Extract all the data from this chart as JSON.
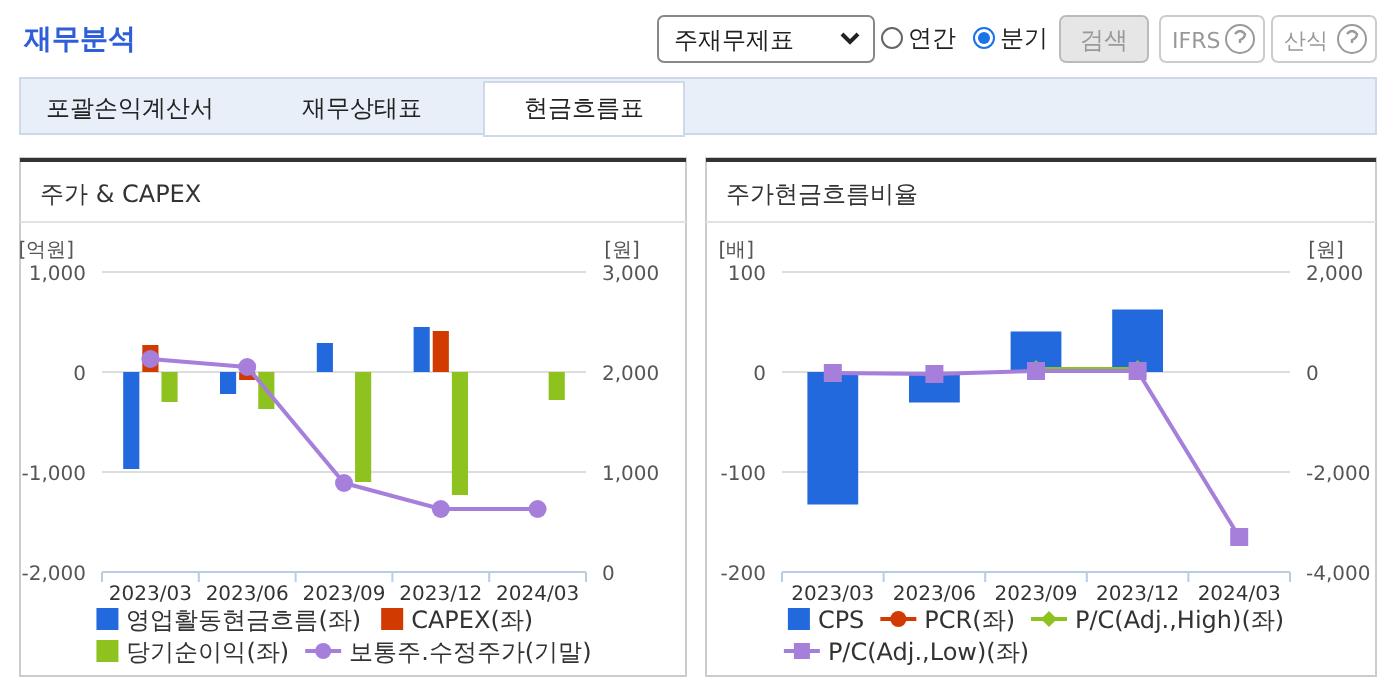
{
  "chart_data": [
    {
      "type": "other",
      "title": "재무분석",
      "annotations": [
        "주재무제표",
        "연간",
        "분기",
        "검색",
        "IFRS",
        "산식",
        "포괄손익계산서",
        "재무상태표",
        "현금흐름표"
      ]
    },
    {
      "type": "bar",
      "title": "주가 & CAPEX",
      "ylabel": "[억원]",
      "y2label": "[원]",
      "categories": [
        "2023/03",
        "2023/06",
        "2023/09",
        "2023/12",
        "2024/03"
      ],
      "series": [
        {
          "name": "영업활동현금흐름(좌)",
          "color": "#2269dd",
          "values": [
            -970,
            -220,
            290,
            450,
            null
          ]
        },
        {
          "name": "CAPEX(좌)",
          "color": "#d13a00",
          "values": [
            270,
            -80,
            null,
            410,
            null
          ]
        },
        {
          "name": "당기순이익(좌)",
          "color": "#8dc21f",
          "values": [
            -300,
            -370,
            -1100,
            -1230,
            -280
          ]
        },
        {
          "name": "보통주.수정주가(기말)",
          "type": "line",
          "axis": "y2",
          "marker": "circle",
          "color": "#a67fdb",
          "values": [
            2130,
            2050,
            890,
            630,
            630
          ]
        }
      ],
      "ylim": [
        -2000,
        1000
      ],
      "yticks": [
        {
          "value": -2000,
          "label": "-2,000"
        },
        {
          "value": -1000,
          "label": "-1,000"
        },
        0,
        {
          "value": 1000,
          "label": "1,000"
        }
      ],
      "y2lim": [
        0,
        3000
      ],
      "y2ticks": [
        0,
        {
          "value": 1000,
          "label": "1,000"
        },
        {
          "value": 2000,
          "label": "2,000"
        },
        {
          "value": 3000,
          "label": "3,000"
        }
      ],
      "grid": "y",
      "legend": "bottom"
    },
    {
      "type": "bar",
      "title": "주가현금흐름비율",
      "ylabel": "[배]",
      "y2label": "[원]",
      "categories": [
        "2023/03",
        "2023/06",
        "2023/09",
        "2023/12",
        "2024/03"
      ],
      "series": [
        {
          "name": "CPS",
          "color": "#2269dd",
          "axis": "y2",
          "values": [
            -2650,
            -610,
            810,
            1250,
            null
          ]
        },
        {
          "name": "PCR(좌)",
          "type": "line",
          "marker": "circle",
          "color": "#d13a00",
          "values": [
            null,
            null,
            null,
            null,
            null
          ]
        },
        {
          "name": "P/C(Adj.,High)(좌)",
          "type": "line",
          "marker": "diamond",
          "color": "#8dc21f",
          "values": [
            null,
            null,
            3,
            3,
            null
          ]
        },
        {
          "name": "P/C(Adj.,Low)(좌)",
          "type": "line",
          "marker": "square",
          "color": "#a67fdb",
          "values": [
            -1,
            -2,
            1,
            1,
            -165
          ]
        }
      ],
      "ylim": [
        -200,
        100
      ],
      "yticks": [
        -200,
        -100,
        0,
        100
      ],
      "y2lim": [
        -4000,
        2000
      ],
      "y2ticks": [
        {
          "value": -4000,
          "label": "-4,000"
        },
        {
          "value": -2000,
          "label": "-2,000"
        },
        0,
        {
          "value": 2000,
          "label": "2,000"
        }
      ],
      "grid": "y",
      "legend": "bottom"
    }
  ]
}
